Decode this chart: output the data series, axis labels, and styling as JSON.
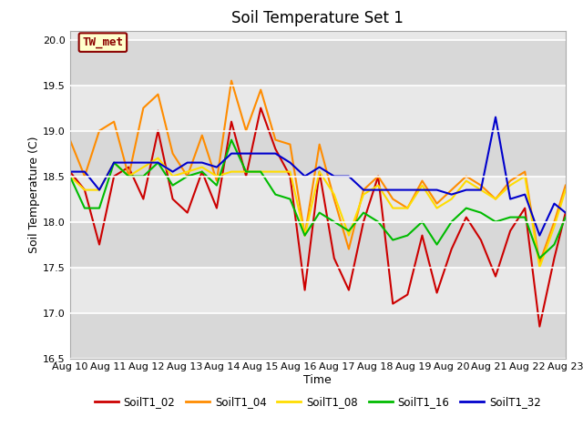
{
  "title": "Soil Temperature Set 1",
  "xlabel": "Time",
  "ylabel": "Soil Temperature (C)",
  "ylim": [
    16.5,
    20.1
  ],
  "xlim": [
    0,
    13
  ],
  "fig_bg": "#ffffff",
  "plot_bg": "#e8e8e8",
  "annotation_text": "TW_met",
  "annotation_color": "#8b0000",
  "annotation_bg": "#ffffcc",
  "annotation_border": "#8b0000",
  "xtick_labels": [
    "Aug 10",
    "Aug 11",
    "Aug 12",
    "Aug 13",
    "Aug 14",
    "Aug 15",
    "Aug 16",
    "Aug 17",
    "Aug 18",
    "Aug 19",
    "Aug 20",
    "Aug 21",
    "Aug 22",
    "Aug 23"
  ],
  "ytick_labels": [
    "16.5",
    "17.0",
    "17.5",
    "18.0",
    "18.5",
    "19.0",
    "19.5",
    "20.0"
  ],
  "ytick_vals": [
    16.5,
    17.0,
    17.5,
    18.0,
    18.5,
    19.0,
    19.5,
    20.0
  ],
  "series": {
    "SoilT1_02": {
      "color": "#cc0000",
      "x": [
        0.0,
        0.385,
        0.77,
        1.155,
        1.54,
        1.925,
        2.31,
        2.695,
        3.08,
        3.465,
        3.85,
        4.235,
        4.62,
        5.005,
        5.39,
        5.775,
        6.16,
        6.545,
        6.93,
        7.315,
        7.7,
        8.085,
        8.47,
        8.855,
        9.24,
        9.625,
        10.01,
        10.395,
        10.78,
        11.165,
        11.55,
        11.935,
        12.32,
        12.705,
        13.0
      ],
      "y": [
        18.55,
        18.35,
        17.75,
        18.5,
        18.6,
        18.25,
        19.0,
        18.25,
        18.1,
        18.55,
        18.15,
        19.1,
        18.5,
        19.25,
        18.8,
        18.5,
        17.25,
        18.55,
        17.6,
        17.25,
        18.0,
        18.5,
        17.1,
        17.2,
        17.85,
        17.22,
        17.7,
        18.05,
        17.8,
        17.4,
        17.9,
        18.15,
        16.85,
        17.6,
        18.1
      ]
    },
    "SoilT1_04": {
      "color": "#ff8c00",
      "x": [
        0.0,
        0.385,
        0.77,
        1.155,
        1.54,
        1.925,
        2.31,
        2.695,
        3.08,
        3.465,
        3.85,
        4.235,
        4.62,
        5.005,
        5.39,
        5.775,
        6.16,
        6.545,
        6.93,
        7.315,
        7.7,
        8.085,
        8.47,
        8.855,
        9.24,
        9.625,
        10.01,
        10.395,
        10.78,
        11.165,
        11.55,
        11.935,
        12.32,
        12.705,
        13.0
      ],
      "y": [
        18.9,
        18.5,
        19.0,
        19.1,
        18.5,
        19.25,
        19.4,
        18.75,
        18.5,
        18.95,
        18.45,
        19.55,
        19.0,
        19.45,
        18.9,
        18.85,
        17.85,
        18.85,
        18.25,
        17.7,
        18.35,
        18.5,
        18.25,
        18.15,
        18.45,
        18.2,
        18.35,
        18.5,
        18.4,
        18.25,
        18.45,
        18.55,
        17.55,
        18.0,
        18.4
      ]
    },
    "SoilT1_08": {
      "color": "#ffdd00",
      "x": [
        0.0,
        0.385,
        0.77,
        1.155,
        1.54,
        1.925,
        2.31,
        2.695,
        3.08,
        3.465,
        3.85,
        4.235,
        4.62,
        5.005,
        5.39,
        5.775,
        6.16,
        6.545,
        6.93,
        7.315,
        7.7,
        8.085,
        8.47,
        8.855,
        9.24,
        9.625,
        10.01,
        10.395,
        10.78,
        11.165,
        11.55,
        11.935,
        12.32,
        12.705,
        13.0
      ],
      "y": [
        18.5,
        18.35,
        18.35,
        18.65,
        18.5,
        18.6,
        18.7,
        18.5,
        18.55,
        18.6,
        18.5,
        18.55,
        18.55,
        18.55,
        18.55,
        18.55,
        17.85,
        18.55,
        18.3,
        17.85,
        18.3,
        18.4,
        18.15,
        18.15,
        18.4,
        18.15,
        18.25,
        18.45,
        18.35,
        18.25,
        18.4,
        18.5,
        17.5,
        17.95,
        18.35
      ]
    },
    "SoilT1_16": {
      "color": "#00bb00",
      "x": [
        0.0,
        0.385,
        0.77,
        1.155,
        1.54,
        1.925,
        2.31,
        2.695,
        3.08,
        3.465,
        3.85,
        4.235,
        4.62,
        5.005,
        5.39,
        5.775,
        6.16,
        6.545,
        6.93,
        7.315,
        7.7,
        8.085,
        8.47,
        8.855,
        9.24,
        9.625,
        10.01,
        10.395,
        10.78,
        11.165,
        11.55,
        11.935,
        12.32,
        12.705,
        13.0
      ],
      "y": [
        18.5,
        18.15,
        18.15,
        18.65,
        18.5,
        18.5,
        18.65,
        18.4,
        18.5,
        18.55,
        18.4,
        18.9,
        18.55,
        18.55,
        18.3,
        18.25,
        17.85,
        18.1,
        18.0,
        17.9,
        18.1,
        18.0,
        17.8,
        17.85,
        18.0,
        17.75,
        18.0,
        18.15,
        18.1,
        18.0,
        18.05,
        18.05,
        17.6,
        17.75,
        18.05
      ]
    },
    "SoilT1_32": {
      "color": "#0000cc",
      "x": [
        0.0,
        0.385,
        0.77,
        1.155,
        1.54,
        1.925,
        2.31,
        2.695,
        3.08,
        3.465,
        3.85,
        4.235,
        4.62,
        5.005,
        5.39,
        5.775,
        6.16,
        6.545,
        6.93,
        7.315,
        7.7,
        8.085,
        8.47,
        8.855,
        9.24,
        9.625,
        10.01,
        10.395,
        10.78,
        11.165,
        11.55,
        11.935,
        12.32,
        12.705,
        13.0
      ],
      "y": [
        18.55,
        18.55,
        18.35,
        18.65,
        18.65,
        18.65,
        18.65,
        18.55,
        18.65,
        18.65,
        18.6,
        18.75,
        18.75,
        18.75,
        18.75,
        18.65,
        18.5,
        18.6,
        18.5,
        18.5,
        18.35,
        18.35,
        18.35,
        18.35,
        18.35,
        18.35,
        18.3,
        18.35,
        18.35,
        19.15,
        18.25,
        18.3,
        17.85,
        18.2,
        18.1
      ]
    }
  },
  "legend_order": [
    "SoilT1_02",
    "SoilT1_04",
    "SoilT1_08",
    "SoilT1_16",
    "SoilT1_32"
  ]
}
